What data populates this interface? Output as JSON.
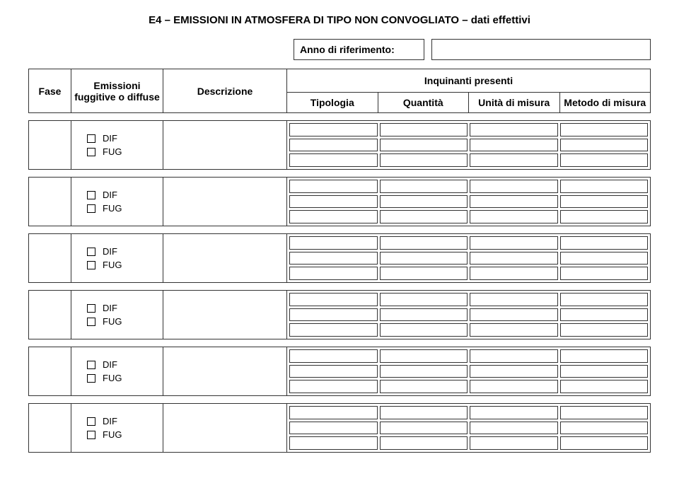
{
  "title": "E4 – EMISSIONI IN ATMOSFERA DI TIPO NON CONVOGLIATO – dati effettivi",
  "anno_label": "Anno di riferimento:",
  "headers": {
    "fase": "Fase",
    "emissioni": "Emissioni fuggitive o diffuse",
    "descrizione": "Descrizione",
    "inquinanti": "Inquinanti presenti",
    "tipologia": "Tipologia",
    "quantita": "Quantità",
    "unita": "Unità di misura",
    "metodo": "Metodo di misura"
  },
  "checkbox_labels": {
    "dif": "DIF",
    "fug": "FUG"
  },
  "row_count": 6,
  "subcell_cols": 4,
  "subcell_rows": 3,
  "colors": {
    "border": "#333333",
    "background": "#ffffff",
    "text": "#000000"
  },
  "fonts": {
    "title_size": 15,
    "header_size": 14,
    "body_size": 13
  }
}
